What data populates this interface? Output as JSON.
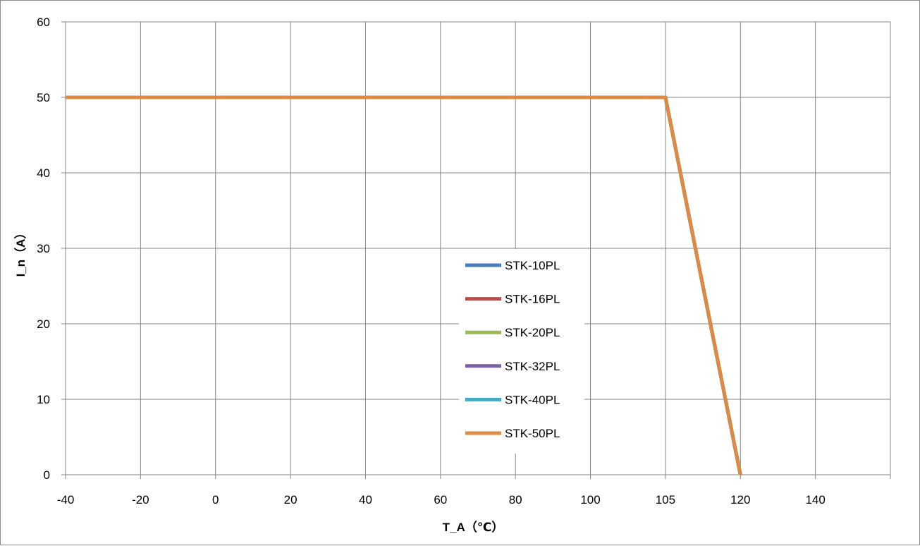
{
  "chart_data": {
    "type": "line",
    "title": "",
    "xlabel": "T_A（℃）",
    "ylabel": "I_n（A）",
    "x": [
      "-40",
      "-20",
      "0",
      "20",
      "40",
      "60",
      "80",
      "100",
      "105",
      "120",
      "140"
    ],
    "ylim": [
      0,
      60
    ],
    "yticks": [
      "0",
      "10",
      "20",
      "30",
      "40",
      "50",
      "60"
    ],
    "grid": true,
    "legend_position": "center",
    "series": [
      {
        "name": "STK-10PL",
        "color": "#4a7ebb",
        "points": [
          {
            "x": "-40",
            "y": 50
          },
          {
            "x": "105",
            "y": 50
          },
          {
            "x": "120",
            "y": 0
          }
        ]
      },
      {
        "name": "STK-16PL",
        "color": "#be4b48",
        "points": [
          {
            "x": "-40",
            "y": 50
          },
          {
            "x": "105",
            "y": 50
          },
          {
            "x": "120",
            "y": 0
          }
        ]
      },
      {
        "name": "STK-20PL",
        "color": "#98b954",
        "points": [
          {
            "x": "-40",
            "y": 50
          },
          {
            "x": "105",
            "y": 50
          },
          {
            "x": "120",
            "y": 0
          }
        ]
      },
      {
        "name": "STK-32PL",
        "color": "#7d60a0",
        "points": [
          {
            "x": "-40",
            "y": 50
          },
          {
            "x": "105",
            "y": 50
          },
          {
            "x": "120",
            "y": 0
          }
        ]
      },
      {
        "name": "STK-40PL",
        "color": "#46aac5",
        "points": [
          {
            "x": "-40",
            "y": 50
          },
          {
            "x": "105",
            "y": 50
          },
          {
            "x": "120",
            "y": 0
          }
        ]
      },
      {
        "name": "STK-50PL",
        "color": "#dd8a43",
        "points": [
          {
            "x": "-40",
            "y": 50
          },
          {
            "x": "105",
            "y": 50
          },
          {
            "x": "120",
            "y": 0
          }
        ]
      }
    ]
  }
}
